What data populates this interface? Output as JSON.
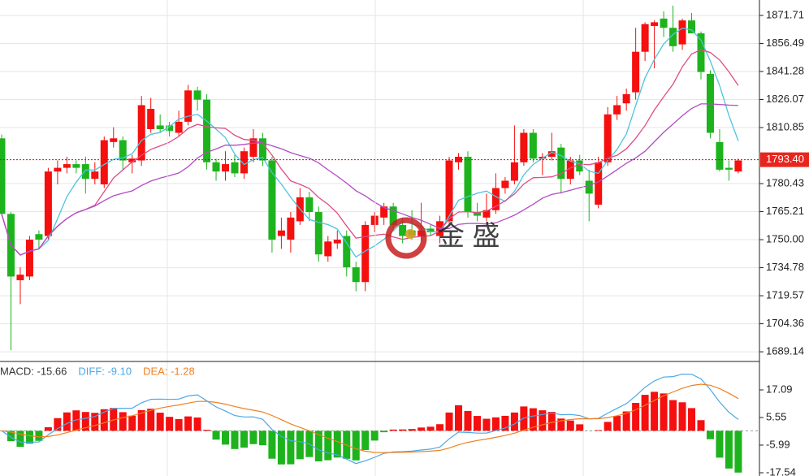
{
  "chart_data": [
    {
      "type": "candlestick",
      "ohlc": [
        [
          1805,
          1807,
          1763,
          1764
        ],
        [
          1764,
          1765,
          1690,
          1730
        ],
        [
          1728,
          1735,
          1715,
          1731
        ],
        [
          1730,
          1752,
          1728,
          1750
        ],
        [
          1753,
          1755,
          1745,
          1750
        ],
        [
          1752,
          1789,
          1750,
          1787
        ],
        [
          1787,
          1793,
          1780,
          1789
        ],
        [
          1789,
          1795,
          1786,
          1791
        ],
        [
          1791,
          1793,
          1786,
          1789
        ],
        [
          1791,
          1795,
          1775,
          1783
        ],
        [
          1783,
          1792,
          1780,
          1787
        ],
        [
          1780,
          1806,
          1778,
          1804
        ],
        [
          1803,
          1811,
          1800,
          1805
        ],
        [
          1804,
          1806,
          1788,
          1793
        ],
        [
          1792,
          1796,
          1786,
          1794
        ],
        [
          1793,
          1828,
          1790,
          1823
        ],
        [
          1810,
          1827,
          1808,
          1821
        ],
        [
          1812,
          1818,
          1808,
          1810
        ],
        [
          1812,
          1814,
          1806,
          1809
        ],
        [
          1808,
          1820,
          1806,
          1814
        ],
        [
          1814,
          1834,
          1812,
          1831
        ],
        [
          1831,
          1833,
          1820,
          1826
        ],
        [
          1826,
          1829,
          1788,
          1792
        ],
        [
          1792,
          1794,
          1782,
          1787
        ],
        [
          1787,
          1798,
          1782,
          1791
        ],
        [
          1792,
          1796,
          1784,
          1786
        ],
        [
          1786,
          1800,
          1783,
          1798
        ],
        [
          1795,
          1810,
          1792,
          1805
        ],
        [
          1805,
          1808,
          1790,
          1793
        ],
        [
          1793,
          1795,
          1743,
          1750
        ],
        [
          1752,
          1762,
          1745,
          1755
        ],
        [
          1750,
          1765,
          1743,
          1762
        ],
        [
          1760,
          1778,
          1758,
          1773
        ],
        [
          1773,
          1776,
          1760,
          1765
        ],
        [
          1765,
          1768,
          1738,
          1742
        ],
        [
          1741,
          1752,
          1738,
          1749
        ],
        [
          1748,
          1755,
          1745,
          1750
        ],
        [
          1752,
          1755,
          1730,
          1735
        ],
        [
          1735,
          1738,
          1722,
          1727
        ],
        [
          1727,
          1760,
          1722,
          1758
        ],
        [
          1758,
          1765,
          1754,
          1763
        ],
        [
          1762,
          1770,
          1758,
          1768
        ],
        [
          1768,
          1770,
          1755,
          1758
        ],
        [
          1758,
          1762,
          1748,
          1752
        ],
        [
          1755,
          1766,
          1750,
          1752
        ],
        [
          1752,
          1770,
          1749,
          1755
        ],
        [
          1756,
          1758,
          1752,
          1754
        ],
        [
          1752,
          1763,
          1748,
          1760
        ],
        [
          1760,
          1795,
          1758,
          1793
        ],
        [
          1792,
          1797,
          1788,
          1795
        ],
        [
          1795,
          1798,
          1762,
          1765
        ],
        [
          1765,
          1770,
          1760,
          1763
        ],
        [
          1762,
          1775,
          1760,
          1766
        ],
        [
          1766,
          1786,
          1764,
          1778
        ],
        [
          1778,
          1784,
          1775,
          1782
        ],
        [
          1782,
          1812,
          1780,
          1792
        ],
        [
          1792,
          1810,
          1790,
          1808
        ],
        [
          1808,
          1810,
          1792,
          1794
        ],
        [
          1794,
          1797,
          1785,
          1795
        ],
        [
          1795,
          1808,
          1793,
          1798
        ],
        [
          1800,
          1802,
          1775,
          1783
        ],
        [
          1783,
          1795,
          1780,
          1793
        ],
        [
          1793,
          1796,
          1785,
          1787
        ],
        [
          1782,
          1788,
          1760,
          1775
        ],
        [
          1769,
          1795,
          1767,
          1792
        ],
        [
          1792,
          1822,
          1790,
          1818
        ],
        [
          1818,
          1828,
          1815,
          1823
        ],
        [
          1824,
          1832,
          1820,
          1829
        ],
        [
          1830,
          1865,
          1826,
          1852
        ],
        [
          1852,
          1868,
          1847,
          1867
        ],
        [
          1866,
          1869,
          1843,
          1868
        ],
        [
          1870,
          1874,
          1860,
          1865
        ],
        [
          1865,
          1877,
          1852,
          1855
        ],
        [
          1856,
          1870,
          1853,
          1869
        ],
        [
          1869,
          1873,
          1862,
          1862
        ],
        [
          1862,
          1863,
          1837,
          1841
        ],
        [
          1840,
          1842,
          1805,
          1808
        ],
        [
          1803,
          1810,
          1787,
          1788
        ],
        [
          1789,
          1793,
          1782,
          1788
        ],
        [
          1787,
          1794,
          1786,
          1793
        ]
      ],
      "up_color": "#f50f0f",
      "down_color": "#1db31d",
      "ma_colors": [
        "#4cc4dc",
        "#e04c86",
        "#b24cc4"
      ],
      "ylim": [
        1683.89,
        1880.09
      ],
      "yticks": [
        1871.71,
        1856.49,
        1841.28,
        1826.07,
        1810.85,
        1780.43,
        1765.21,
        {
          "value": 1750,
          "label": "1750.00"
        },
        1734.78,
        1719.57,
        1704.36,
        1689.14
      ],
      "last_price": {
        "value": 1793.4,
        "label": "1793.40"
      },
      "watermark": "金 盛",
      "grid": true
    },
    {
      "type": "macd",
      "legend": [
        {
          "label": "MACD: -15.66",
          "color": "#333333"
        },
        {
          "label": "DIFF: -9.10",
          "color": "#4aa8e8"
        },
        {
          "label": "DEA: -1.28",
          "color": "#f08020"
        }
      ],
      "ylim": [
        -18.9,
        28.3
      ],
      "yticks": [
        17.09,
        5.55,
        -5.99,
        -17.54
      ]
    }
  ]
}
